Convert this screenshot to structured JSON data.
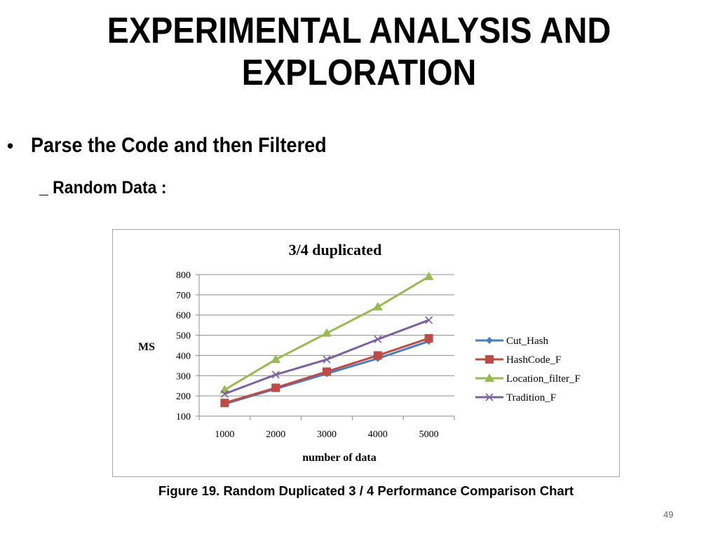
{
  "slide": {
    "title_line1": "EXPERIMENTAL ANALYSIS AND",
    "title_line2": "EXPLORATION",
    "bullet": "Parse the Code and then Filtered",
    "subbullet": "_ Random Data :",
    "caption": "Figure 19. Random Duplicated 3 / 4 Performance Comparison Chart",
    "page_number": "49"
  },
  "chart_data": {
    "type": "line",
    "title": "3/4 duplicated",
    "xlabel": "number of data",
    "ylabel": "MS",
    "categories": [
      "1000",
      "2000",
      "3000",
      "4000",
      "5000"
    ],
    "ylim": [
      100,
      800
    ],
    "yticks": [
      100,
      200,
      300,
      400,
      500,
      600,
      700,
      800
    ],
    "grid": true,
    "legend_position": "right",
    "series": [
      {
        "name": "Cut_Hash",
        "color": "#4a7ebb",
        "marker": "diamond",
        "values": [
          160,
          235,
          310,
          385,
          470
        ]
      },
      {
        "name": "HashCode_F",
        "color": "#be4b48",
        "marker": "square",
        "values": [
          165,
          240,
          320,
          400,
          485
        ]
      },
      {
        "name": "Location_filter_F",
        "color": "#98b954",
        "marker": "triangle",
        "values": [
          230,
          380,
          510,
          640,
          790
        ]
      },
      {
        "name": "Tradition_F",
        "color": "#7d60a0",
        "marker": "x",
        "values": [
          210,
          305,
          380,
          480,
          575
        ]
      }
    ]
  }
}
